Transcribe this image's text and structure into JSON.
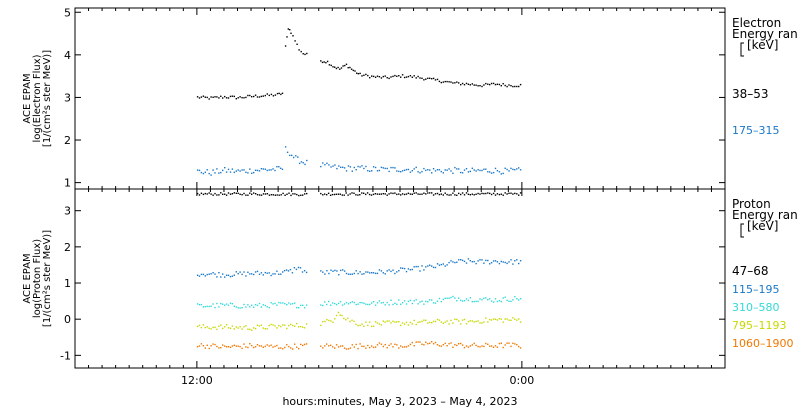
{
  "chart_data": [
    {
      "type": "scatter",
      "panel": "electron",
      "ylabel_lines": [
        "ACE EPAM",
        "log(Electron Flux)",
        "[1/(cm²s ster MeV)]"
      ],
      "legend_title_lines": [
        "Electron",
        "Energy ran",
        "[keV]"
      ],
      "legend_placement": "right",
      "ylim": [
        0.85,
        5.1
      ],
      "yticks": [
        1,
        2,
        3,
        4,
        5
      ],
      "series": [
        {
          "name": "38–53",
          "color": "#000000",
          "segments": [
            {
              "points": [
                [
                  0.0,
                  3.02
                ],
                [
                  1.0,
                  3.0
                ],
                [
                  2.0,
                  3.03
                ],
                [
                  3.0,
                  3.01
                ],
                [
                  4.0,
                  3.04
                ],
                [
                  5.0,
                  3.06
                ],
                [
                  5.9,
                  3.08
                ],
                [
                  6.4,
                  3.12
                ]
              ]
            },
            {
              "points": [
                [
                  6.5,
                  4.2
                ],
                [
                  6.7,
                  4.65
                ],
                [
                  6.9,
                  4.55
                ],
                [
                  7.2,
                  4.35
                ],
                [
                  7.5,
                  4.15
                ],
                [
                  7.8,
                  4.05
                ],
                [
                  8.2,
                  4.0
                ]
              ]
            },
            {
              "points": [
                [
                  9.1,
                  3.88
                ],
                [
                  9.6,
                  3.85
                ],
                [
                  10.0,
                  3.75
                ],
                [
                  10.5,
                  3.68
                ],
                [
                  11.0,
                  3.78
                ],
                [
                  11.5,
                  3.65
                ],
                [
                  12.0,
                  3.55
                ],
                [
                  13.0,
                  3.5
                ],
                [
                  14.0,
                  3.48
                ],
                [
                  15.0,
                  3.52
                ],
                [
                  16.0,
                  3.5
                ],
                [
                  17.0,
                  3.45
                ],
                [
                  18.0,
                  3.4
                ],
                [
                  19.0,
                  3.35
                ],
                [
                  20.0,
                  3.33
                ],
                [
                  21.0,
                  3.3
                ],
                [
                  22.0,
                  3.33
                ],
                [
                  23.0,
                  3.3
                ],
                [
                  24.0,
                  3.3
                ]
              ]
            }
          ]
        },
        {
          "name": "175–315",
          "color": "#1a78c8",
          "segments": [
            {
              "points": [
                [
                  0.0,
                  1.28
                ],
                [
                  1.0,
                  1.25
                ],
                [
                  2.0,
                  1.3
                ],
                [
                  3.0,
                  1.28
                ],
                [
                  4.0,
                  1.3
                ],
                [
                  5.0,
                  1.32
                ],
                [
                  6.0,
                  1.33
                ],
                [
                  6.4,
                  1.35
                ]
              ]
            },
            {
              "points": [
                [
                  6.5,
                  1.8
                ],
                [
                  6.8,
                  1.72
                ],
                [
                  7.1,
                  1.62
                ],
                [
                  7.4,
                  1.55
                ],
                [
                  7.8,
                  1.5
                ],
                [
                  8.2,
                  1.47
                ]
              ]
            },
            {
              "points": [
                [
                  9.1,
                  1.42
                ],
                [
                  10.0,
                  1.38
                ],
                [
                  11.0,
                  1.35
                ],
                [
                  12.0,
                  1.35
                ],
                [
                  13.0,
                  1.33
                ],
                [
                  14.0,
                  1.32
                ],
                [
                  15.0,
                  1.33
                ],
                [
                  16.0,
                  1.32
                ],
                [
                  17.0,
                  1.3
                ],
                [
                  18.0,
                  1.3
                ],
                [
                  19.0,
                  1.3
                ],
                [
                  20.0,
                  1.28
                ],
                [
                  21.0,
                  1.3
                ],
                [
                  22.0,
                  1.3
                ],
                [
                  23.0,
                  1.28
                ],
                [
                  24.0,
                  1.3
                ]
              ]
            }
          ]
        }
      ]
    },
    {
      "type": "scatter",
      "panel": "proton",
      "ylabel_lines": [
        "ACE EPAM",
        "log(Proton Flux)",
        "[1/(cm²s ster MeV)]"
      ],
      "legend_title_lines": [
        "Proton",
        "Energy ran",
        "[keV]"
      ],
      "legend_placement": "right",
      "ylim": [
        -1.35,
        3.6
      ],
      "yticks": [
        -1,
        0,
        1,
        2,
        3
      ],
      "series": [
        {
          "name": "47–68",
          "color": "#000000",
          "segments": [
            {
              "points": [
                [
                  0.0,
                  3.48
                ],
                [
                  4.0,
                  3.48
                ],
                [
                  8.2,
                  3.47
                ]
              ]
            },
            {
              "points": [
                [
                  9.1,
                  3.48
                ],
                [
                  14.0,
                  3.48
                ],
                [
                  24.0,
                  3.48
                ]
              ]
            }
          ]
        },
        {
          "name": "115–195",
          "color": "#1a78c8",
          "segments": [
            {
              "points": [
                [
                  0.0,
                  1.28
                ],
                [
                  2.0,
                  1.25
                ],
                [
                  4.0,
                  1.28
                ],
                [
                  6.0,
                  1.3
                ],
                [
                  7.0,
                  1.35
                ],
                [
                  7.3,
                  1.45
                ],
                [
                  7.6,
                  1.4
                ],
                [
                  8.2,
                  1.3
                ]
              ]
            },
            {
              "points": [
                [
                  9.1,
                  1.3
                ],
                [
                  10.0,
                  1.32
                ],
                [
                  12.0,
                  1.3
                ],
                [
                  14.0,
                  1.33
                ],
                [
                  16.0,
                  1.4
                ],
                [
                  17.0,
                  1.45
                ],
                [
                  18.0,
                  1.5
                ],
                [
                  19.0,
                  1.6
                ],
                [
                  20.0,
                  1.62
                ],
                [
                  21.0,
                  1.6
                ],
                [
                  22.0,
                  1.62
                ],
                [
                  23.0,
                  1.6
                ],
                [
                  24.0,
                  1.62
                ]
              ]
            }
          ]
        },
        {
          "name": "310–580",
          "color": "#33d9d9",
          "segments": [
            {
              "points": [
                [
                  0.0,
                  0.38
                ],
                [
                  2.0,
                  0.4
                ],
                [
                  4.0,
                  0.38
                ],
                [
                  6.0,
                  0.42
                ],
                [
                  8.2,
                  0.4
                ]
              ]
            },
            {
              "points": [
                [
                  9.1,
                  0.45
                ],
                [
                  11.0,
                  0.48
                ],
                [
                  13.0,
                  0.45
                ],
                [
                  15.0,
                  0.5
                ],
                [
                  17.0,
                  0.5
                ],
                [
                  18.0,
                  0.55
                ],
                [
                  19.0,
                  0.6
                ],
                [
                  20.0,
                  0.58
                ],
                [
                  22.0,
                  0.55
                ],
                [
                  24.0,
                  0.6
                ]
              ]
            }
          ]
        },
        {
          "name": "795–1193",
          "color": "#c8d800",
          "segments": [
            {
              "points": [
                [
                  0.0,
                  -0.2
                ],
                [
                  2.0,
                  -0.2
                ],
                [
                  4.0,
                  -0.22
                ],
                [
                  6.0,
                  -0.18
                ],
                [
                  8.2,
                  -0.15
                ]
              ]
            },
            {
              "points": [
                [
                  9.1,
                  -0.1
                ],
                [
                  10.0,
                  0.0
                ],
                [
                  10.4,
                  0.25
                ],
                [
                  10.8,
                  0.05
                ],
                [
                  12.0,
                  -0.12
                ],
                [
                  14.0,
                  -0.1
                ],
                [
                  16.0,
                  -0.08
                ],
                [
                  18.0,
                  -0.05
                ],
                [
                  20.0,
                  -0.05
                ],
                [
                  22.0,
                  0.0
                ],
                [
                  24.0,
                  0.0
                ]
              ]
            }
          ]
        },
        {
          "name": "1060–1900",
          "color": "#f07800",
          "segments": [
            {
              "points": [
                [
                  0.0,
                  -0.7
                ],
                [
                  2.0,
                  -0.75
                ],
                [
                  4.0,
                  -0.72
                ],
                [
                  6.0,
                  -0.75
                ],
                [
                  8.2,
                  -0.72
                ]
              ]
            },
            {
              "points": [
                [
                  9.1,
                  -0.72
                ],
                [
                  11.0,
                  -0.75
                ],
                [
                  13.0,
                  -0.7
                ],
                [
                  15.0,
                  -0.72
                ],
                [
                  17.0,
                  -0.65
                ],
                [
                  19.0,
                  -0.7
                ],
                [
                  21.0,
                  -0.72
                ],
                [
                  23.0,
                  -0.7
                ],
                [
                  24.0,
                  -0.72
                ]
              ]
            }
          ]
        }
      ]
    }
  ],
  "x_axis": {
    "xlim": [
      -9,
      39
    ],
    "ticks": [
      {
        "x": 0,
        "label": "12:00"
      },
      {
        "x": 24,
        "label": "0:00"
      }
    ],
    "minor_tick_step": 1,
    "label": "hours:minutes, May  3, 2023 – May  4, 2023"
  }
}
